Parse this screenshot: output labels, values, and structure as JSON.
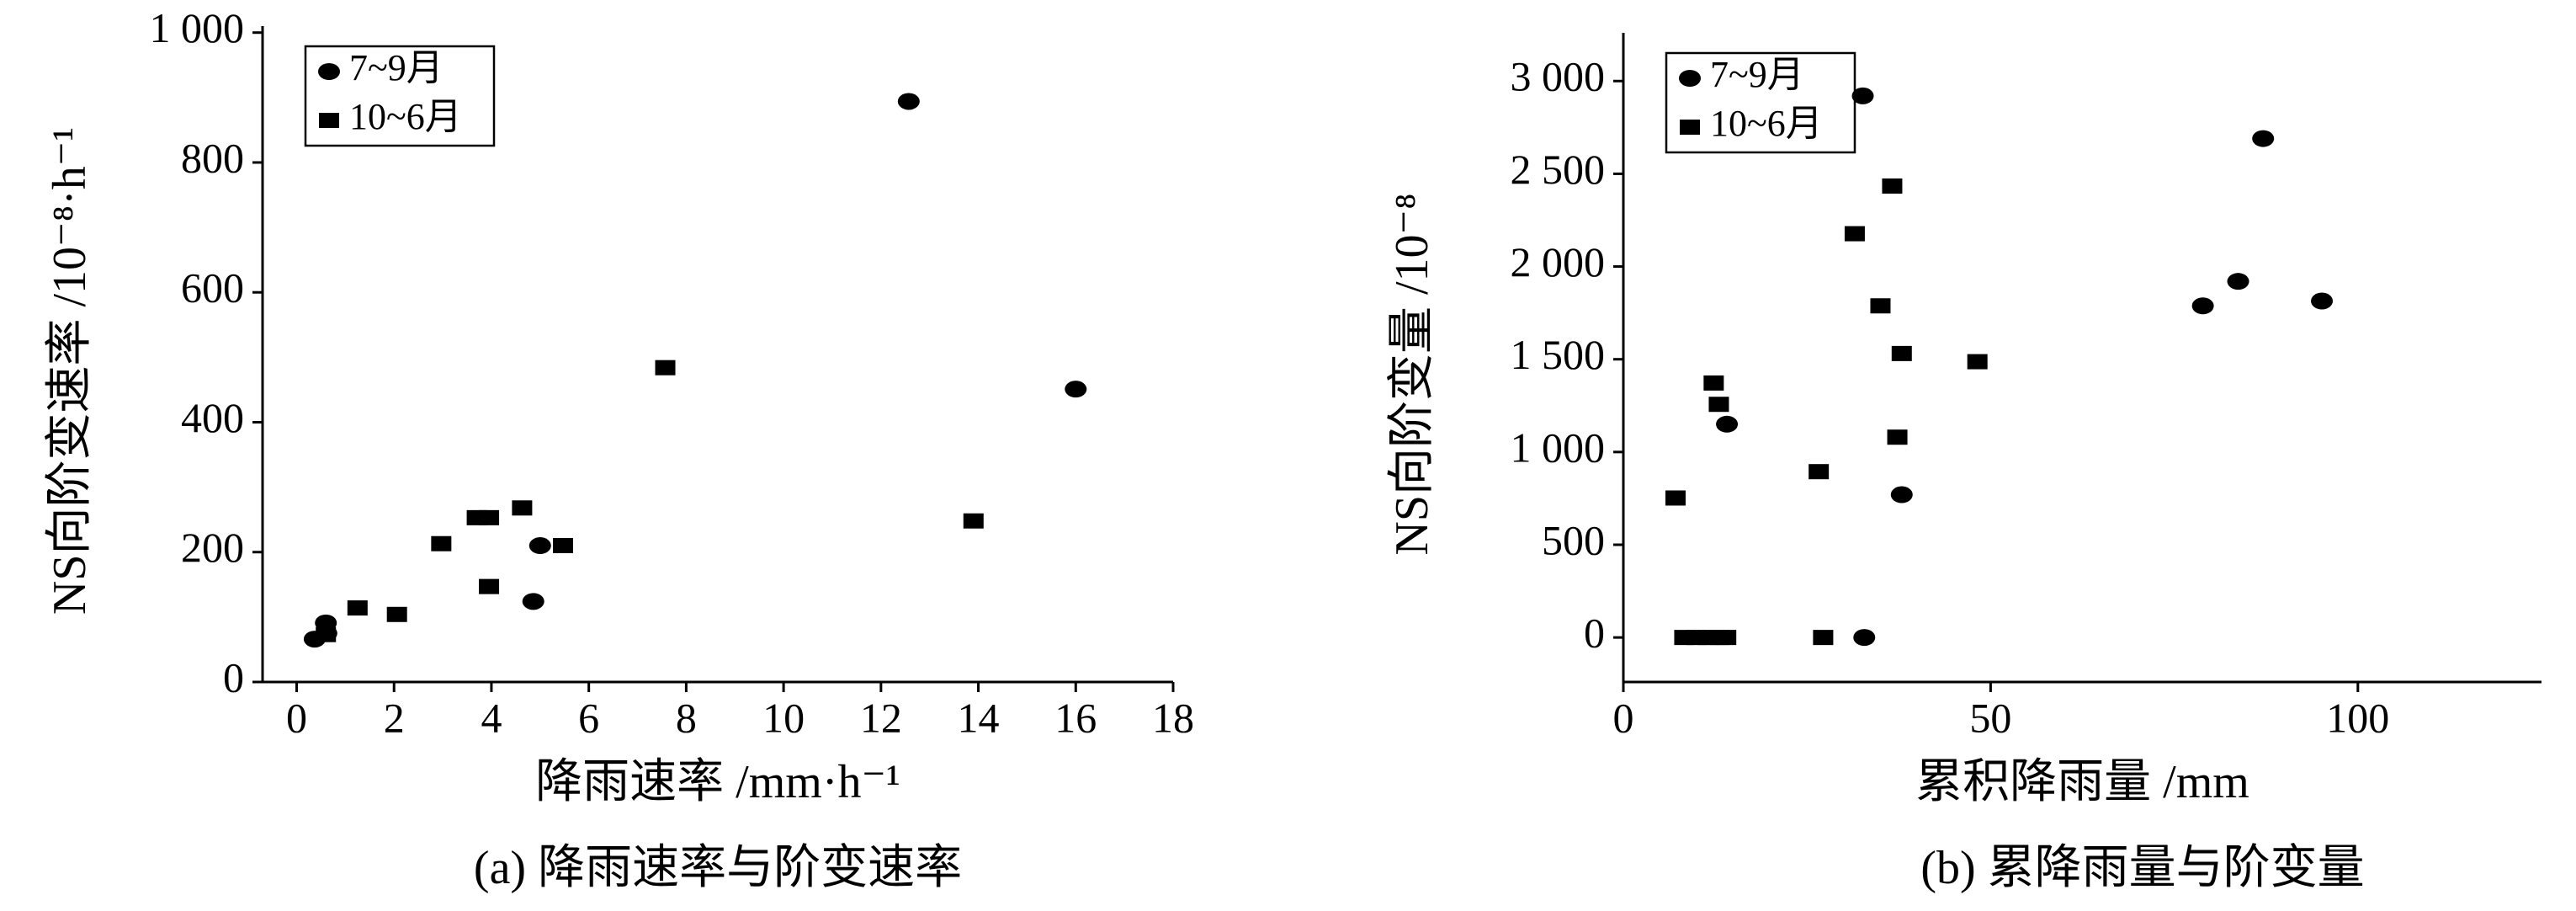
{
  "chart_data": [
    {
      "type": "scatter",
      "caption": "(a) 降雨速率与阶变速率",
      "xlabel": "降雨速率 /mm·h⁻¹",
      "ylabel": "NS向阶变速率 /10⁻⁸·h⁻¹",
      "xlim": [
        -0.7,
        18
      ],
      "ylim": [
        0,
        1010
      ],
      "xticks": [
        0,
        2,
        4,
        6,
        8,
        10,
        12,
        14,
        16,
        18
      ],
      "yticks": [
        0,
        200,
        400,
        600,
        800,
        {
          "value": 1000,
          "label": "1 000"
        }
      ],
      "legend": "top-left",
      "series": [
        {
          "name": "7~9月",
          "color": "#000000",
          "marker": "ellipse",
          "x": [
            0.37,
            0.61,
            0.6,
            12.57,
            16.0,
            4.86,
            5.0
          ],
          "values": [
            66,
            75,
            91,
            894,
            451,
            124,
            210
          ]
        },
        {
          "name": "10~6月",
          "color": "#000000",
          "marker": "square",
          "x": [
            0.6,
            1.25,
            2.06,
            2.97,
            3.7,
            3.95,
            3.95,
            4.63,
            5.47,
            7.57,
            13.9
          ],
          "values": [
            73,
            114,
            104,
            213,
            253,
            253,
            147,
            268,
            210,
            484,
            248
          ]
        }
      ]
    },
    {
      "type": "scatter",
      "caption": "(b) 累降雨量与阶变量",
      "xlabel": "累积降雨量 /mm",
      "ylabel": "NS向阶变量 /10⁻⁸",
      "xlim": [
        0,
        125
      ],
      "ylim": [
        -240,
        3260
      ],
      "xticks": [
        0,
        50,
        100
      ],
      "yticks": [
        0,
        500,
        {
          "value": 1000,
          "label": "1 000"
        },
        {
          "value": 1500,
          "label": "1 500"
        },
        {
          "value": 2000,
          "label": "2 000"
        },
        {
          "value": 2500,
          "label": "2 500"
        },
        {
          "value": 3000,
          "label": "3 000"
        }
      ],
      "legend": "top-left",
      "series": [
        {
          "name": "7~9月",
          "color": "#000000",
          "marker": "ellipse",
          "x": [
            32.6,
            87.1,
            83.7,
            78.9,
            95.1,
            14.1,
            37.9,
            32.8
          ],
          "values": [
            2920,
            2690,
            1920,
            1788,
            1814,
            1150,
            770,
            0
          ]
        },
        {
          "name": "10~6月",
          "color": "#000000",
          "marker": "square",
          "x": [
            7.1,
            12.3,
            13.0,
            26.6,
            31.5,
            36.6,
            35.0,
            37.9,
            37.3,
            48.2,
            8.3,
            10.0,
            11.5,
            13.0,
            14.0,
            27.2
          ],
          "values": [
            752,
            1372,
            1257,
            894,
            2177,
            2434,
            1788,
            1531,
            1080,
            1487,
            0,
            0,
            0,
            0,
            0,
            0
          ]
        }
      ]
    }
  ]
}
